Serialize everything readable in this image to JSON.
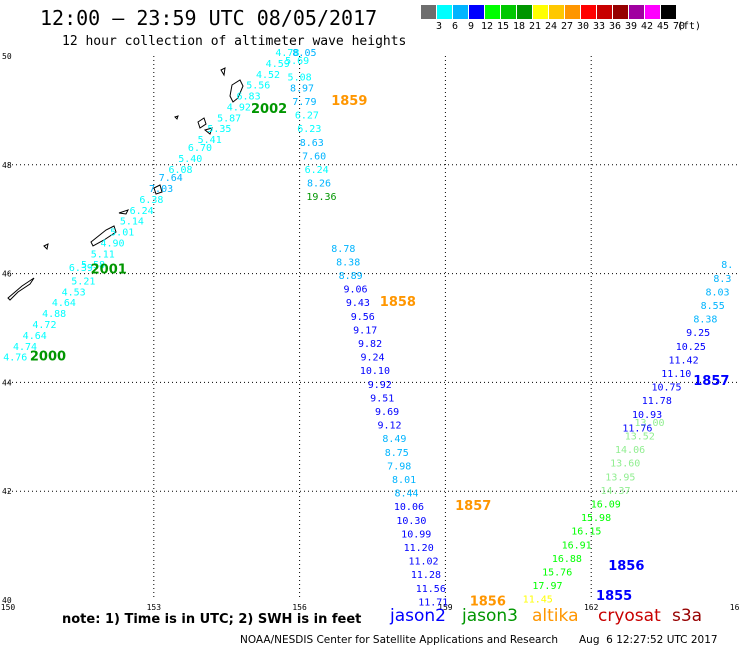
{
  "header": {
    "title": "12:00 — 23:59 UTC 08/05/2017",
    "subtitle": "12 hour collection of altimeter wave heights"
  },
  "colorbar": {
    "colors": [
      "#6e6e6e",
      "#00ffff",
      "#00b4ff",
      "#0000ff",
      "#00ff00",
      "#00c800",
      "#009600",
      "#ffff00",
      "#ffc800",
      "#ff9600",
      "#ff0000",
      "#c80000",
      "#960000",
      "#a000a0",
      "#ff00ff",
      "#000000"
    ],
    "labels": [
      "3",
      "6",
      "9",
      "12",
      "15",
      "18",
      "21",
      "24",
      "27",
      "30",
      "33",
      "36",
      "39",
      "42",
      "45",
      "70",
      "(ft)"
    ]
  },
  "axes": {
    "lon_min": 150,
    "lon_max": 165,
    "lat_min": 40,
    "lat_max": 50,
    "x_ticks": [
      "150",
      "153",
      "156",
      "159",
      "162",
      "165"
    ],
    "y_ticks": [
      "50",
      "48",
      "46",
      "44",
      "42",
      "40"
    ]
  },
  "tracks": [
    {
      "label": "2000",
      "label_color": "#009600",
      "points": [
        {
          "v": "4.76",
          "lon": 150.15,
          "lat": 44.4,
          "c": "#00ffff"
        },
        {
          "v": "4.74",
          "lon": 150.35,
          "lat": 44.6,
          "c": "#00ffff"
        },
        {
          "v": "4.64",
          "lon": 150.55,
          "lat": 44.8,
          "c": "#00ffff"
        },
        {
          "v": "4.72",
          "lon": 150.75,
          "lat": 45.0,
          "c": "#00ffff"
        },
        {
          "v": "4.88",
          "lon": 150.95,
          "lat": 45.2,
          "c": "#00ffff"
        },
        {
          "v": "4.64",
          "lon": 151.15,
          "lat": 45.4,
          "c": "#00ffff"
        },
        {
          "v": "4.53",
          "lon": 151.35,
          "lat": 45.6,
          "c": "#00ffff"
        },
        {
          "v": "5.21",
          "lon": 151.55,
          "lat": 45.8,
          "c": "#00ffff"
        },
        {
          "v": "6.39",
          "lon": 151.5,
          "lat": 46.05,
          "c": "#00ffff"
        },
        {
          "v": "5.58",
          "lon": 151.75,
          "lat": 46.1,
          "c": "#00ffff"
        },
        {
          "v": "5.11",
          "lon": 151.95,
          "lat": 46.3,
          "c": "#00ffff"
        },
        {
          "v": "4.90",
          "lon": 152.15,
          "lat": 46.5,
          "c": "#00ffff"
        },
        {
          "v": "5.01",
          "lon": 152.35,
          "lat": 46.7,
          "c": "#00ffff"
        },
        {
          "v": "5.14",
          "lon": 152.55,
          "lat": 46.9,
          "c": "#00ffff"
        },
        {
          "v": "6.24",
          "lon": 152.75,
          "lat": 47.1,
          "c": "#00ffff"
        },
        {
          "v": "6.38",
          "lon": 152.95,
          "lat": 47.3,
          "c": "#00ffff"
        },
        {
          "v": "7.03",
          "lon": 153.15,
          "lat": 47.5,
          "c": "#00b4ff"
        },
        {
          "v": "7.64",
          "lon": 153.35,
          "lat": 47.7,
          "c": "#00b4ff"
        },
        {
          "v": "6.08",
          "lon": 153.55,
          "lat": 47.85,
          "c": "#00ffff"
        },
        {
          "v": "5.40",
          "lon": 153.75,
          "lat": 48.05,
          "c": "#00ffff"
        },
        {
          "v": "6.70",
          "lon": 153.95,
          "lat": 48.25,
          "c": "#00ffff"
        },
        {
          "v": "5.41",
          "lon": 154.15,
          "lat": 48.4,
          "c": "#00ffff"
        },
        {
          "v": "5.35",
          "lon": 154.35,
          "lat": 48.6,
          "c": "#00ffff"
        },
        {
          "v": "5.87",
          "lon": 154.55,
          "lat": 48.8,
          "c": "#00ffff"
        },
        {
          "v": "4.92",
          "lon": 154.75,
          "lat": 49.0,
          "c": "#00ffff"
        },
        {
          "v": "6.83",
          "lon": 154.95,
          "lat": 49.2,
          "c": "#00ffff"
        },
        {
          "v": "5.56",
          "lon": 155.15,
          "lat": 49.4,
          "c": "#00ffff"
        },
        {
          "v": "4.52",
          "lon": 155.35,
          "lat": 49.6,
          "c": "#00ffff"
        },
        {
          "v": "4.59",
          "lon": 155.55,
          "lat": 49.8,
          "c": "#00ffff"
        },
        {
          "v": "4.78",
          "lon": 155.75,
          "lat": 50.0,
          "c": "#00ffff"
        }
      ],
      "label_lon": 150.45,
      "label_lat": 44.4
    },
    {
      "label": "2001",
      "label_color": "#009600",
      "points": [],
      "label_lon": 151.7,
      "label_lat": 46.0
    },
    {
      "label": "2002",
      "label_color": "#009600",
      "points": [],
      "label_lon": 155.0,
      "label_lat": 48.95
    },
    {
      "label": "1859",
      "label_color": "#ff9600",
      "points": [
        {
          "v": "8.05",
          "lon": 156.1,
          "lat": 50.0,
          "c": "#00b4ff"
        },
        {
          "v": "5.69",
          "lon": 155.95,
          "lat": 49.85,
          "c": "#00ffff"
        },
        {
          "v": "5.08",
          "lon": 156.0,
          "lat": 49.55,
          "c": "#00ffff"
        },
        {
          "v": "8.97",
          "lon": 156.05,
          "lat": 49.35,
          "c": "#00b4ff"
        },
        {
          "v": "7.79",
          "lon": 156.1,
          "lat": 49.1,
          "c": "#00b4ff"
        },
        {
          "v": "6.27",
          "lon": 156.15,
          "lat": 48.85,
          "c": "#00ffff"
        },
        {
          "v": "6.23",
          "lon": 156.2,
          "lat": 48.6,
          "c": "#00ffff"
        },
        {
          "v": "8.63",
          "lon": 156.25,
          "lat": 48.35,
          "c": "#00b4ff"
        },
        {
          "v": "7.60",
          "lon": 156.3,
          "lat": 48.1,
          "c": "#00b4ff"
        },
        {
          "v": "6.24",
          "lon": 156.35,
          "lat": 47.85,
          "c": "#00ffff"
        },
        {
          "v": "8.26",
          "lon": 156.4,
          "lat": 47.6,
          "c": "#00b4ff"
        },
        {
          "v": "19.36",
          "lon": 156.45,
          "lat": 47.35,
          "c": "#009600"
        }
      ],
      "label_lon": 156.65,
      "label_lat": 49.1
    },
    {
      "label": "1858",
      "label_color": "#ff9600",
      "points": [
        {
          "v": "8.78",
          "lon": 156.9,
          "lat": 46.4,
          "c": "#00b4ff"
        },
        {
          "v": "8.38",
          "lon": 157.0,
          "lat": 46.15,
          "c": "#00b4ff"
        },
        {
          "v": "8.89",
          "lon": 157.05,
          "lat": 45.9,
          "c": "#00b4ff"
        },
        {
          "v": "9.06",
          "lon": 157.15,
          "lat": 45.65,
          "c": "#0000ff"
        },
        {
          "v": "9.43",
          "lon": 157.2,
          "lat": 45.4,
          "c": "#0000ff"
        },
        {
          "v": "9.56",
          "lon": 157.3,
          "lat": 45.15,
          "c": "#0000ff"
        },
        {
          "v": "9.17",
          "lon": 157.35,
          "lat": 44.9,
          "c": "#0000ff"
        },
        {
          "v": "9.82",
          "lon": 157.45,
          "lat": 44.65,
          "c": "#0000ff"
        },
        {
          "v": "9.24",
          "lon": 157.5,
          "lat": 44.4,
          "c": "#0000ff"
        },
        {
          "v": "10.10",
          "lon": 157.55,
          "lat": 44.15,
          "c": "#0000ff"
        },
        {
          "v": "9.92",
          "lon": 157.65,
          "lat": 43.9,
          "c": "#0000ff"
        },
        {
          "v": "9.51",
          "lon": 157.7,
          "lat": 43.65,
          "c": "#0000ff"
        },
        {
          "v": "9.69",
          "lon": 157.8,
          "lat": 43.4,
          "c": "#0000ff"
        },
        {
          "v": "9.12",
          "lon": 157.85,
          "lat": 43.15,
          "c": "#0000ff"
        },
        {
          "v": "8.49",
          "lon": 157.95,
          "lat": 42.9,
          "c": "#00b4ff"
        },
        {
          "v": "8.75",
          "lon": 158.0,
          "lat": 42.65,
          "c": "#00b4ff"
        },
        {
          "v": "7.98",
          "lon": 158.05,
          "lat": 42.4,
          "c": "#00b4ff"
        },
        {
          "v": "8.01",
          "lon": 158.15,
          "lat": 42.15,
          "c": "#00b4ff"
        },
        {
          "v": "8.44",
          "lon": 158.2,
          "lat": 41.9,
          "c": "#00b4ff"
        }
      ],
      "label_lon": 157.65,
      "label_lat": 45.4
    },
    {
      "label": "1857",
      "label_color": "#ff9600",
      "points": [
        {
          "v": "10.06",
          "lon": 158.25,
          "lat": 41.65,
          "c": "#0000ff"
        },
        {
          "v": "10.30",
          "lon": 158.3,
          "lat": 41.4,
          "c": "#0000ff"
        },
        {
          "v": "10.99",
          "lon": 158.4,
          "lat": 41.15,
          "c": "#0000ff"
        },
        {
          "v": "11.20",
          "lon": 158.45,
          "lat": 40.9,
          "c": "#0000ff"
        },
        {
          "v": "11.02",
          "lon": 158.55,
          "lat": 40.65,
          "c": "#0000ff"
        },
        {
          "v": "11.28",
          "lon": 158.6,
          "lat": 40.4,
          "c": "#0000ff"
        },
        {
          "v": "11.56",
          "lon": 158.7,
          "lat": 40.15,
          "c": "#0000ff"
        },
        {
          "v": "11.71",
          "lon": 158.75,
          "lat": 39.9,
          "c": "#0000ff"
        }
      ],
      "label_lon": 159.2,
      "label_lat": 41.65
    },
    {
      "label": "1856",
      "label_color": "#ff9600",
      "points": [],
      "label_lon": 159.5,
      "label_lat": 39.9
    },
    {
      "label": "1855",
      "label_color": "#0000ff",
      "points": [
        {
          "v": "11.45",
          "lon": 160.9,
          "lat": 39.95,
          "c": "#ffff00"
        },
        {
          "v": "17.97",
          "lon": 161.1,
          "lat": 40.2,
          "c": "#00ff00"
        },
        {
          "v": "15.76",
          "lon": 161.3,
          "lat": 40.45,
          "c": "#00ff00"
        },
        {
          "v": "16.88",
          "lon": 161.5,
          "lat": 40.7,
          "c": "#00ff00"
        },
        {
          "v": "16.91",
          "lon": 161.7,
          "lat": 40.95,
          "c": "#00ff00"
        },
        {
          "v": "16.15",
          "lon": 161.9,
          "lat": 41.2,
          "c": "#00ff00"
        },
        {
          "v": "15.98",
          "lon": 162.1,
          "lat": 41.45,
          "c": "#00ff00"
        },
        {
          "v": "16.09",
          "lon": 162.3,
          "lat": 41.7,
          "c": "#00ff00"
        },
        {
          "v": "14.37",
          "lon": 162.5,
          "lat": 41.95,
          "c": "#90ee90"
        },
        {
          "v": "13.95",
          "lon": 162.6,
          "lat": 42.2,
          "c": "#90ee90"
        },
        {
          "v": "13.60",
          "lon": 162.7,
          "lat": 42.45,
          "c": "#90ee90"
        },
        {
          "v": "14.06",
          "lon": 162.8,
          "lat": 42.7,
          "c": "#90ee90"
        },
        {
          "v": "13.52",
          "lon": 163.0,
          "lat": 42.95,
          "c": "#90ee90"
        },
        {
          "v": "13.00",
          "lon": 163.2,
          "lat": 43.2,
          "c": "#90ee90"
        }
      ],
      "label_lon": 162.1,
      "label_lat": 40.0
    },
    {
      "label": "1856",
      "label_color": "#0000ff",
      "points": [],
      "label_lon": 162.35,
      "label_lat": 40.55
    },
    {
      "label": "1857",
      "label_color": "#0000ff",
      "points": [
        {
          "v": "11.76",
          "lon": 162.95,
          "lat": 43.1,
          "c": "#0000ff"
        },
        {
          "v": "10.93",
          "lon": 163.15,
          "lat": 43.35,
          "c": "#0000ff"
        },
        {
          "v": "11.78",
          "lon": 163.35,
          "lat": 43.6,
          "c": "#0000ff"
        },
        {
          "v": "10.75",
          "lon": 163.55,
          "lat": 43.85,
          "c": "#0000ff"
        },
        {
          "v": "11.10",
          "lon": 163.75,
          "lat": 44.1,
          "c": "#0000ff"
        },
        {
          "v": "11.42",
          "lon": 163.9,
          "lat": 44.35,
          "c": "#0000ff"
        },
        {
          "v": "10.25",
          "lon": 164.05,
          "lat": 44.6,
          "c": "#0000ff"
        },
        {
          "v": "9.25",
          "lon": 164.2,
          "lat": 44.85,
          "c": "#0000ff"
        },
        {
          "v": "8.38",
          "lon": 164.35,
          "lat": 45.1,
          "c": "#00b4ff"
        },
        {
          "v": "8.55",
          "lon": 164.5,
          "lat": 45.35,
          "c": "#00b4ff"
        },
        {
          "v": "8.03",
          "lon": 164.6,
          "lat": 45.6,
          "c": "#00b4ff"
        },
        {
          "v": "8.3",
          "lon": 164.7,
          "lat": 45.85,
          "c": "#00b4ff"
        },
        {
          "v": "8.",
          "lon": 164.8,
          "lat": 46.1,
          "c": "#00b4ff"
        }
      ],
      "label_lon": 164.1,
      "label_lat": 43.95
    }
  ],
  "footer": {
    "note": "note:  1) Time is in UTC;  2) SWH is in feet",
    "satellites": [
      {
        "name": "jason2",
        "color": "#0000ff"
      },
      {
        "name": "jason3",
        "color": "#009600"
      },
      {
        "name": "altika",
        "color": "#ff9600"
      },
      {
        "name": "cryosat",
        "color": "#c80000"
      },
      {
        "name": "s3a",
        "color": "#960000"
      }
    ],
    "credit": "NOAA/NESDIS Center for Satellite Applications and Research",
    "timestamp": "Aug  6 12:27:52 UTC 2017"
  }
}
